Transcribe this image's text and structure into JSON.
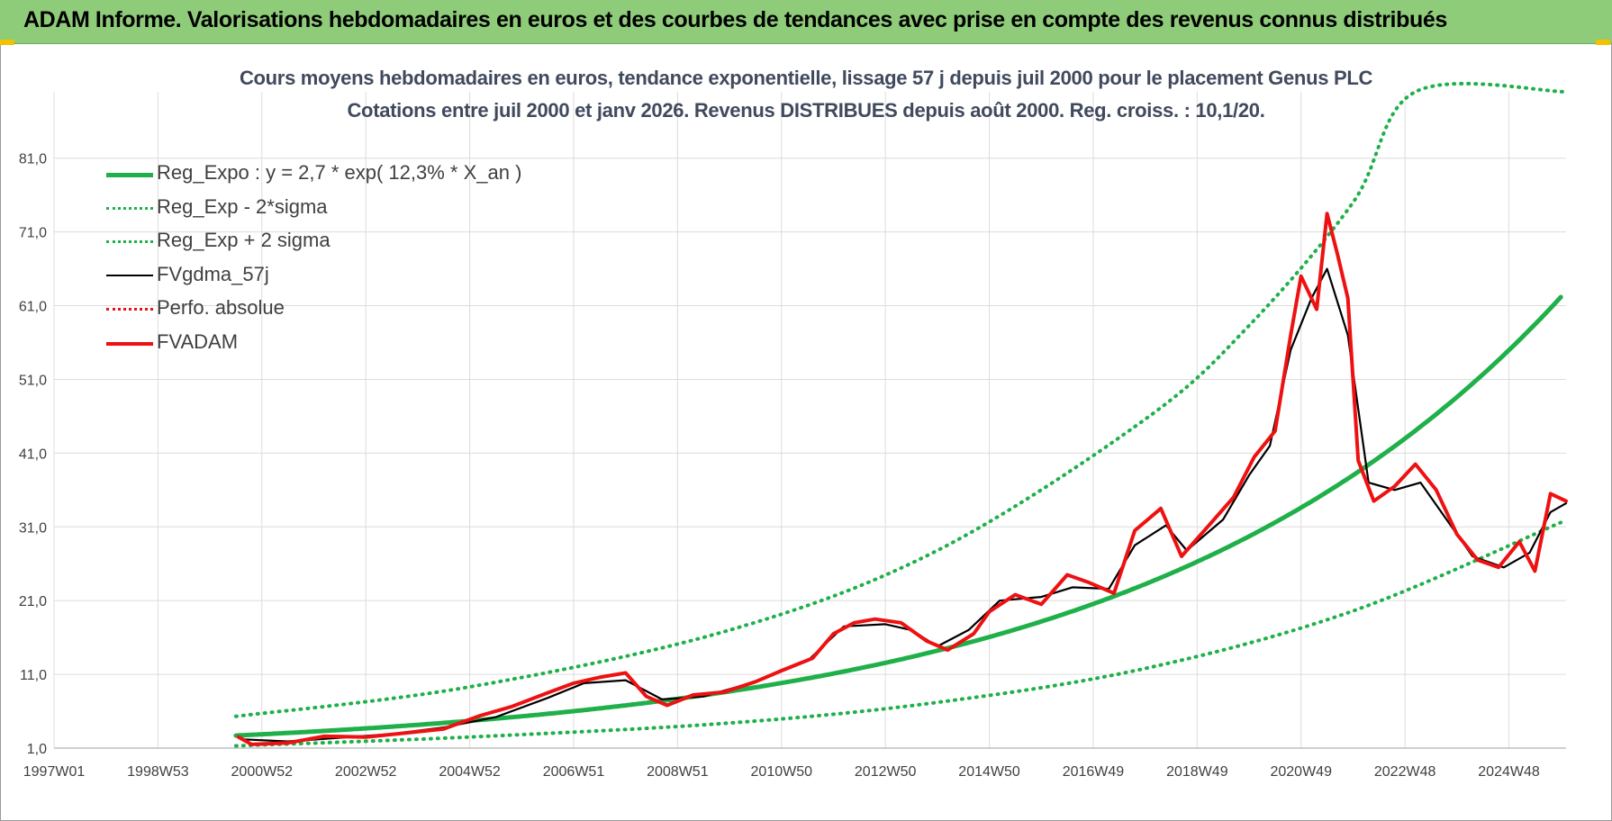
{
  "header": {
    "title": "ADAM Informe. Valorisations hebdomadaires en euros et des courbes de tendances avec prise en compte des revenus connus distribués"
  },
  "colors": {
    "header_bg": "#8fcc7a",
    "trend": "#1fb04a",
    "price": "#ee1111",
    "smooth": "#000000",
    "grid": "#dcdcdc"
  },
  "chart_data": {
    "type": "line",
    "title": "Cours moyens hebdomadaires en euros, tendance exponentielle, lissage 57 j depuis juil 2000 pour le placement Genus PLC",
    "subtitle": "Cotations entre juil 2000 et janv 2026. Revenus DISTRIBUES depuis août 2000. Reg. croiss. : 10,1/20.",
    "x_tick_labels": [
      "1997W01",
      "1998W53",
      "2000W52",
      "2002W52",
      "2004W52",
      "2006W51",
      "2008W51",
      "2010W50",
      "2012W50",
      "2014W50",
      "2016W49",
      "2018W49",
      "2020W49",
      "2022W48",
      "2024W48"
    ],
    "x_range": [
      1997.0,
      2026.1
    ],
    "y_tick_labels": [
      "1,0",
      "11,0",
      "21,0",
      "31,0",
      "41,0",
      "51,0",
      "61,0",
      "71,0",
      "81,0"
    ],
    "ylim": [
      1,
      90
    ],
    "grid": true,
    "legend_position": "top-left",
    "trend_formula": {
      "a": 2.7,
      "rate": 0.123,
      "x0": 2000.5
    },
    "series": [
      {
        "name": "Reg_Expo : y = 2,7 * exp( 12,3% *  X_an )",
        "style": "solid-green",
        "points": [
          [
            2000.5,
            2.7
          ],
          [
            2005,
            4.7
          ],
          [
            2010,
            8.7
          ],
          [
            2014,
            14.2
          ],
          [
            2018,
            23.2
          ],
          [
            2022,
            38.2
          ],
          [
            2026,
            62.7
          ]
        ]
      },
      {
        "name": "Reg_Exp - 2*sigma",
        "style": "dotted-green",
        "points": [
          [
            2000.5,
            1.3
          ],
          [
            2005,
            2.5
          ],
          [
            2010,
            4.4
          ],
          [
            2014,
            7.2
          ],
          [
            2018,
            11.8
          ],
          [
            2022,
            19.6
          ],
          [
            2026,
            31.6
          ]
        ]
      },
      {
        "name": "Reg_Exp + 2 sigma",
        "style": "dotted-green",
        "points": [
          [
            2000.5,
            5.3
          ],
          [
            2005,
            9.3
          ],
          [
            2010,
            17.0
          ],
          [
            2014,
            27.8
          ],
          [
            2018,
            45.6
          ],
          [
            2020,
            58.3
          ],
          [
            2022,
            75.0
          ],
          [
            2023.2,
            90.0
          ],
          [
            2026.1,
            90.0
          ]
        ]
      },
      {
        "name": "FVgdma_57j",
        "style": "solid-black",
        "points": [
          [
            2000.6,
            2.2
          ],
          [
            2001.5,
            1.9
          ],
          [
            2002.5,
            2.4
          ],
          [
            2003.5,
            2.9
          ],
          [
            2004.5,
            3.8
          ],
          [
            2005.5,
            5.2
          ],
          [
            2006.5,
            7.8
          ],
          [
            2007.2,
            9.8
          ],
          [
            2008,
            10.2
          ],
          [
            2008.7,
            7.6
          ],
          [
            2009.5,
            8.0
          ],
          [
            2010.5,
            10.0
          ],
          [
            2011.5,
            12.8
          ],
          [
            2012.2,
            17.5
          ],
          [
            2013,
            17.8
          ],
          [
            2013.5,
            17.0
          ],
          [
            2014,
            14.8
          ],
          [
            2014.6,
            17.0
          ],
          [
            2015.2,
            21.0
          ],
          [
            2016,
            21.5
          ],
          [
            2016.6,
            22.8
          ],
          [
            2017.3,
            22.6
          ],
          [
            2017.8,
            28.5
          ],
          [
            2018.4,
            31.2
          ],
          [
            2018.8,
            27.8
          ],
          [
            2019.5,
            32.0
          ],
          [
            2020,
            38.0
          ],
          [
            2020.4,
            42.0
          ],
          [
            2020.8,
            55.0
          ],
          [
            2021.2,
            62.0
          ],
          [
            2021.5,
            66.0
          ],
          [
            2021.9,
            57.0
          ],
          [
            2022.3,
            37.0
          ],
          [
            2022.8,
            36.0
          ],
          [
            2023.3,
            37.0
          ],
          [
            2023.8,
            32.0
          ],
          [
            2024.3,
            27.0
          ],
          [
            2024.9,
            25.5
          ],
          [
            2025.4,
            27.5
          ],
          [
            2025.8,
            33.0
          ],
          [
            2026.1,
            34.2
          ]
        ]
      },
      {
        "name": "Perfo. absolue",
        "style": "dotted-red",
        "points": []
      },
      {
        "name": "FVADAM",
        "style": "solid-red",
        "points": [
          [
            2000.55,
            2.5
          ],
          [
            2000.8,
            1.5
          ],
          [
            2001.5,
            1.7
          ],
          [
            2002.2,
            2.6
          ],
          [
            2003,
            2.5
          ],
          [
            2003.7,
            3.0
          ],
          [
            2004.5,
            3.6
          ],
          [
            2005.2,
            5.4
          ],
          [
            2005.8,
            6.6
          ],
          [
            2006.5,
            8.5
          ],
          [
            2007,
            9.8
          ],
          [
            2007.5,
            10.6
          ],
          [
            2008,
            11.2
          ],
          [
            2008.4,
            8.0
          ],
          [
            2008.8,
            6.8
          ],
          [
            2009.3,
            8.2
          ],
          [
            2009.9,
            8.6
          ],
          [
            2010.5,
            10.0
          ],
          [
            2011,
            11.5
          ],
          [
            2011.6,
            13.2
          ],
          [
            2012,
            16.5
          ],
          [
            2012.4,
            18.0
          ],
          [
            2012.8,
            18.5
          ],
          [
            2013.3,
            18.0
          ],
          [
            2013.8,
            15.5
          ],
          [
            2014.2,
            14.3
          ],
          [
            2014.7,
            16.5
          ],
          [
            2015,
            19.5
          ],
          [
            2015.5,
            21.8
          ],
          [
            2016,
            20.5
          ],
          [
            2016.5,
            24.5
          ],
          [
            2016.9,
            23.5
          ],
          [
            2017.4,
            22.0
          ],
          [
            2017.8,
            30.5
          ],
          [
            2018.3,
            33.5
          ],
          [
            2018.7,
            27.0
          ],
          [
            2019.2,
            31.0
          ],
          [
            2019.7,
            35.0
          ],
          [
            2020.1,
            40.5
          ],
          [
            2020.5,
            44.0
          ],
          [
            2020.8,
            57.0
          ],
          [
            2021.0,
            65.0
          ],
          [
            2021.3,
            60.5
          ],
          [
            2021.5,
            73.5
          ],
          [
            2021.7,
            68.0
          ],
          [
            2021.9,
            62.0
          ],
          [
            2022.1,
            40.0
          ],
          [
            2022.4,
            34.5
          ],
          [
            2022.8,
            36.5
          ],
          [
            2023.2,
            39.5
          ],
          [
            2023.6,
            36.0
          ],
          [
            2024,
            30.0
          ],
          [
            2024.4,
            26.5
          ],
          [
            2024.8,
            25.5
          ],
          [
            2025.2,
            29.0
          ],
          [
            2025.5,
            25.0
          ],
          [
            2025.8,
            35.5
          ],
          [
            2026.1,
            34.5
          ]
        ]
      }
    ]
  }
}
